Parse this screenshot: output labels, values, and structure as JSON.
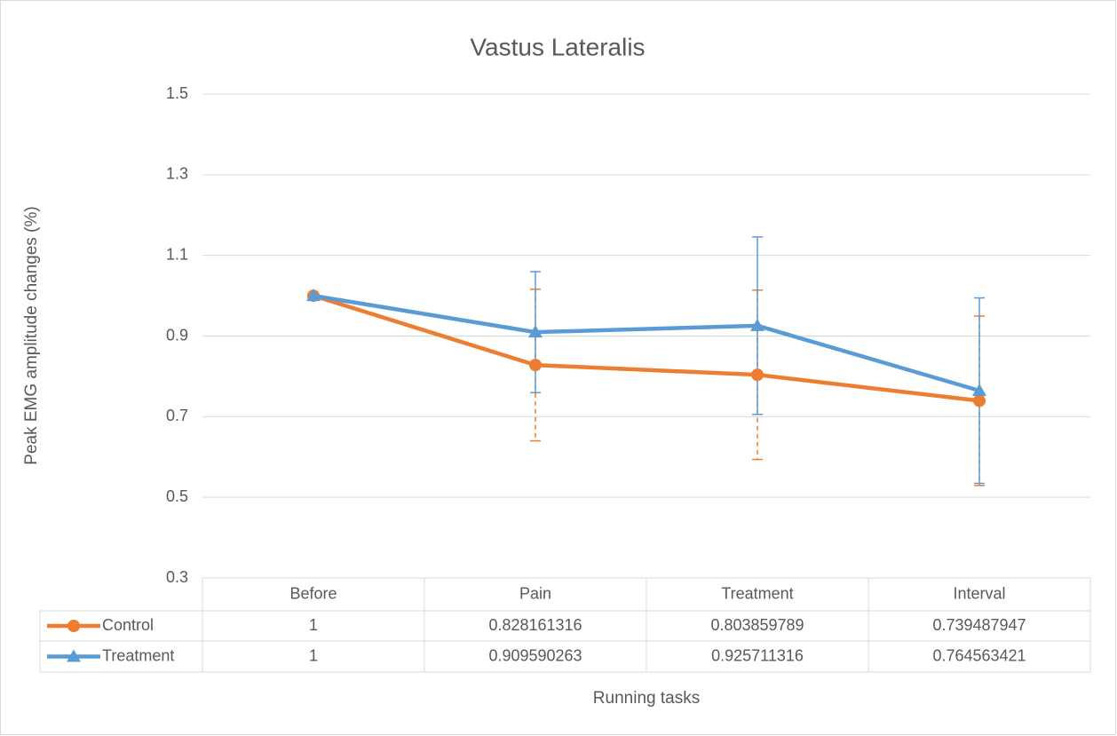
{
  "chart_data": {
    "type": "line",
    "title": "Vastus Lateralis",
    "y_label": "Peak EMG amplitude changes (%)",
    "x_label": "Running tasks",
    "categories": [
      "Before",
      "Pain",
      "Treatment",
      "Interval"
    ],
    "series": [
      {
        "name": "Control",
        "color": "#ed7d31",
        "marker": "circle",
        "dashed_errors": true,
        "values": [
          1,
          0.828161316,
          0.803859789,
          0.739487947
        ],
        "errors": [
          0,
          0.188,
          0.21,
          0.21
        ]
      },
      {
        "name": "Treatment",
        "color": "#5b9bd5",
        "marker": "triangle",
        "dashed_errors": false,
        "values": [
          1,
          0.909590263,
          0.925711316,
          0.764563421
        ],
        "errors": [
          0,
          0.15,
          0.22,
          0.23
        ]
      }
    ],
    "ylim": [
      0.3,
      1.5
    ],
    "yticks": [
      0.3,
      0.5,
      0.7,
      0.9,
      1.1,
      1.3,
      1.5
    ],
    "grid": true,
    "data_table": true
  }
}
